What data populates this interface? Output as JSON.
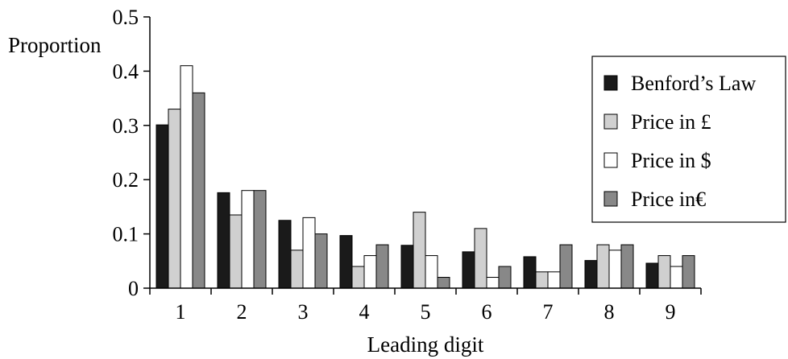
{
  "chart_data": {
    "type": "bar",
    "title": "",
    "xlabel": "Leading digit",
    "ylabel": "Proportion",
    "categories": [
      "1",
      "2",
      "3",
      "4",
      "5",
      "6",
      "7",
      "8",
      "9"
    ],
    "ylim": [
      0,
      0.5
    ],
    "yticks": [
      "0",
      "0.1",
      "0.2",
      "0.3",
      "0.4",
      "0.5"
    ],
    "grid": false,
    "legend_position": "right",
    "series": [
      {
        "name": "Benford’s Law",
        "color": "#1a1a1a",
        "values": [
          0.301,
          0.176,
          0.125,
          0.097,
          0.079,
          0.067,
          0.058,
          0.051,
          0.046
        ]
      },
      {
        "name": "Price in £",
        "color": "#d0d0d0",
        "values": [
          0.33,
          0.135,
          0.07,
          0.04,
          0.14,
          0.11,
          0.03,
          0.08,
          0.06
        ]
      },
      {
        "name": "Price in $",
        "color": "#ffffff",
        "values": [
          0.41,
          0.18,
          0.13,
          0.06,
          0.06,
          0.02,
          0.03,
          0.07,
          0.04
        ]
      },
      {
        "name": "Price in€",
        "color": "#888888",
        "values": [
          0.36,
          0.18,
          0.1,
          0.08,
          0.02,
          0.04,
          0.08,
          0.08,
          0.06
        ]
      }
    ]
  }
}
